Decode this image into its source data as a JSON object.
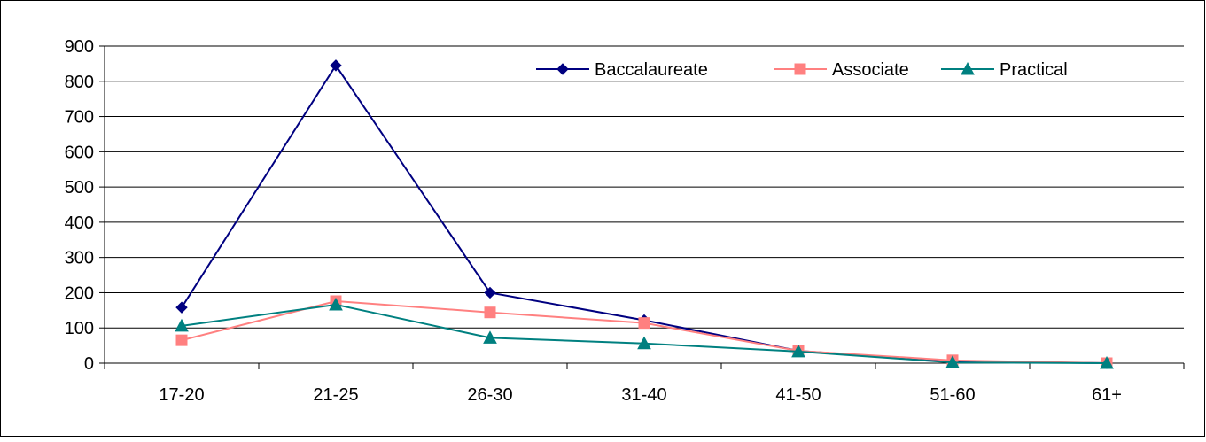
{
  "chart_data": {
    "type": "line",
    "title": "",
    "xlabel": "",
    "ylabel": "",
    "categories": [
      "17-20",
      "21-25",
      "26-30",
      "31-40",
      "41-50",
      "51-60",
      "61+"
    ],
    "ylim": [
      0,
      900
    ],
    "yticks": [
      0,
      100,
      200,
      300,
      400,
      500,
      600,
      700,
      800,
      900
    ],
    "grid": "horizontal",
    "legend_position": "top-right",
    "series": [
      {
        "name": "Baccalaureate",
        "marker": "diamond",
        "color": "#000080",
        "values": [
          158,
          845,
          200,
          122,
          35,
          5,
          0
        ]
      },
      {
        "name": "Associate",
        "marker": "square",
        "color": "#FF8080",
        "values": [
          65,
          176,
          144,
          114,
          35,
          8,
          0
        ]
      },
      {
        "name": "Practical",
        "marker": "triangle",
        "color": "#008080",
        "values": [
          106,
          166,
          72,
          56,
          33,
          2,
          0
        ]
      }
    ]
  }
}
